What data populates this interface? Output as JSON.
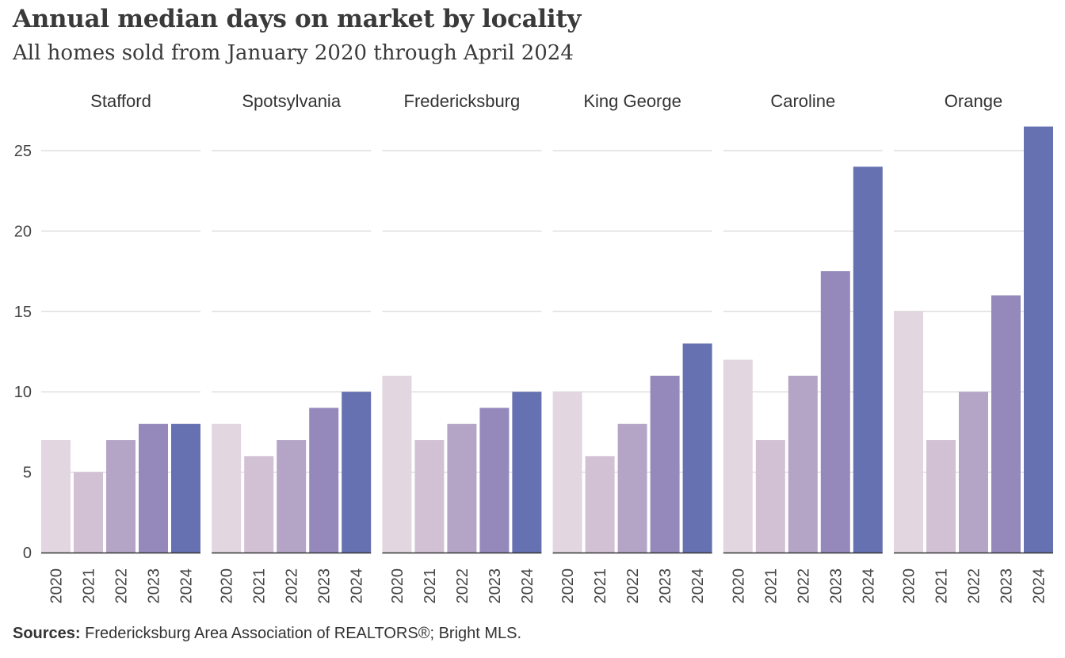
{
  "title": "Annual median days on market by locality",
  "subtitle": "All homes sold from January 2020 through April 2024",
  "footer": {
    "label": "Sources:",
    "text": "Fredericksburg  Area Association of REALTORS®;  Bright MLS."
  },
  "chart_data": {
    "type": "bar",
    "layout": "small-multiples",
    "categories": [
      "2020",
      "2021",
      "2022",
      "2023",
      "2024"
    ],
    "yticks": [
      0,
      5,
      10,
      15,
      20,
      25
    ],
    "ylim": [
      0,
      27
    ],
    "grid": true,
    "colors": [
      "#e2d7e1",
      "#d2c1d5",
      "#b4a5c6",
      "#9589bb",
      "#6571b1"
    ],
    "panels": [
      {
        "name": "Stafford",
        "values": [
          7,
          5,
          7,
          8,
          8
        ]
      },
      {
        "name": "Spotsylvania",
        "values": [
          8,
          6,
          7,
          9,
          10
        ]
      },
      {
        "name": "Fredericksburg",
        "values": [
          11,
          7,
          8,
          9,
          10
        ]
      },
      {
        "name": "King George",
        "values": [
          10,
          6,
          8,
          11,
          13
        ]
      },
      {
        "name": "Caroline",
        "values": [
          12,
          7,
          11,
          17.5,
          24
        ]
      },
      {
        "name": "Orange",
        "values": [
          15,
          7,
          10,
          16,
          26.5
        ]
      }
    ]
  }
}
